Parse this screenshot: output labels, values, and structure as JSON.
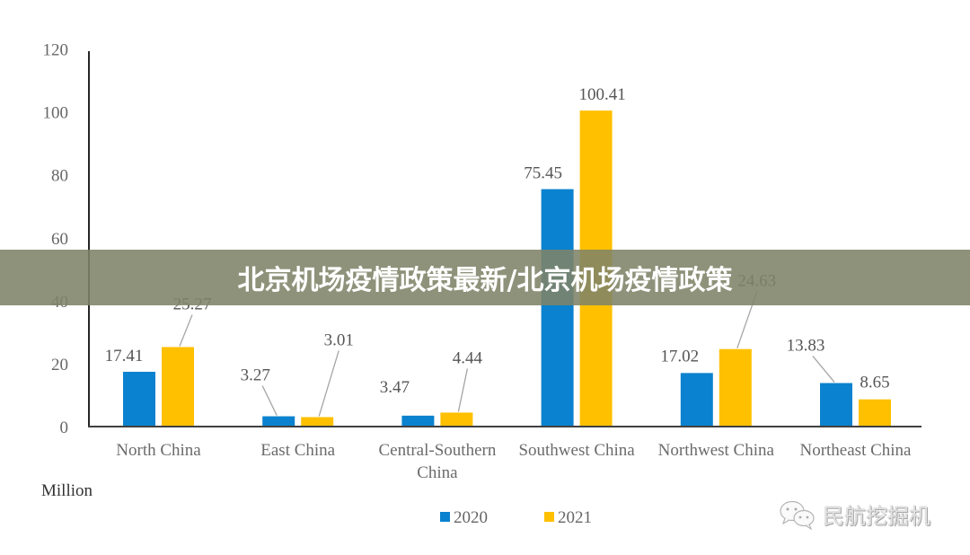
{
  "banner": {
    "title": "北京机场疫情政策最新/北京机场疫情政策"
  },
  "watermark": {
    "text": "民航挖掘机",
    "icon": "wechat-icon"
  },
  "chart_data": {
    "type": "bar",
    "title": "",
    "xlabel": "",
    "ylabel": "Million",
    "ylim": [
      0,
      120
    ],
    "yticks": [
      0,
      20,
      40,
      60,
      80,
      100,
      120
    ],
    "grid": false,
    "legend_position": "bottom-center",
    "categories": [
      "North China",
      "East China",
      "Central-Southern China",
      "Southwest China",
      "Northwest China",
      "Northeast China"
    ],
    "category_lines": [
      [
        "North China"
      ],
      [
        "East China"
      ],
      [
        "Central-Southern",
        "China"
      ],
      [
        "Southwest China"
      ],
      [
        "Northwest China"
      ],
      [
        "Northeast China"
      ]
    ],
    "series": [
      {
        "name": "2020",
        "color": "#0a82cf",
        "values": [
          17.41,
          3.27,
          3.47,
          75.45,
          17.02,
          13.83
        ],
        "labels": [
          "17.41",
          "3.27",
          "3.47",
          "75.45",
          "17.02",
          "13.83"
        ]
      },
      {
        "name": "2021",
        "color": "#ffc000",
        "values": [
          25.27,
          3.01,
          4.44,
          100.41,
          24.63,
          8.65
        ],
        "labels": [
          "25.27",
          "3.01",
          "4.44",
          "100.41",
          "24.63",
          "8.65"
        ]
      }
    ]
  }
}
